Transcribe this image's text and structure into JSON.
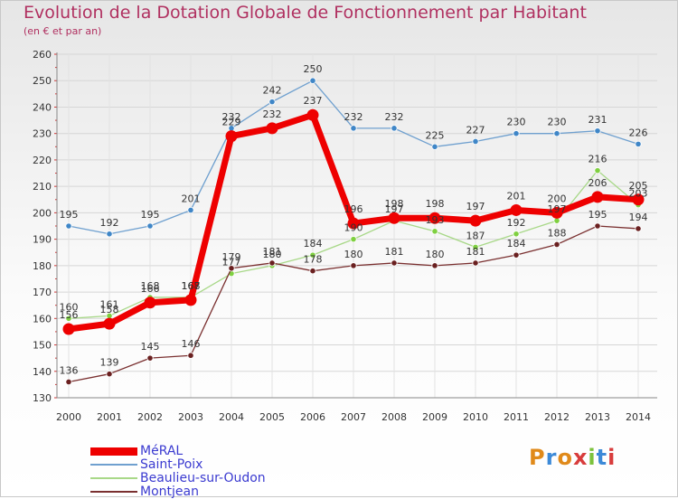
{
  "title": "Evolution de la Dotation Globale de Fonctionnement par Habitant",
  "subtitle": "(en € et par an)",
  "logo": "Proxiti",
  "chart_data": {
    "type": "line",
    "x": [
      "2000",
      "2001",
      "2002",
      "2003",
      "2004",
      "2005",
      "2006",
      "2007",
      "2008",
      "2009",
      "2010",
      "2011",
      "2012",
      "2013",
      "2014"
    ],
    "ylim": [
      130,
      260
    ],
    "yticks": [
      130,
      140,
      150,
      160,
      170,
      180,
      190,
      200,
      210,
      220,
      230,
      240,
      250,
      260
    ],
    "grid": true,
    "legend": "bottom-left",
    "series": [
      {
        "name": "Saint-Poix",
        "color": "#6fa0cf",
        "marker": "#3f86c7",
        "values": [
          195,
          192,
          195,
          201,
          232,
          242,
          250,
          232,
          232,
          225,
          227,
          230,
          230,
          231,
          226
        ]
      },
      {
        "name": "Beaulieu-sur-Oudon",
        "color": "#a8d888",
        "marker": "#7fd040",
        "values": [
          160,
          161,
          168,
          168,
          177,
          180,
          184,
          190,
          197,
          193,
          187,
          192,
          197,
          216,
          203
        ]
      },
      {
        "name": "Montjean",
        "color": "#7a3030",
        "marker": "#6a2020",
        "values": [
          136,
          139,
          145,
          146,
          179,
          181,
          178,
          180,
          181,
          180,
          181,
          184,
          188,
          195,
          194
        ]
      },
      {
        "name": "MéRAL",
        "color": "#ee0000",
        "marker": "#ee0000",
        "values": [
          156,
          158,
          166,
          167,
          229,
          232,
          237,
          196,
          198,
          198,
          197,
          201,
          200,
          206,
          205
        ]
      }
    ]
  }
}
